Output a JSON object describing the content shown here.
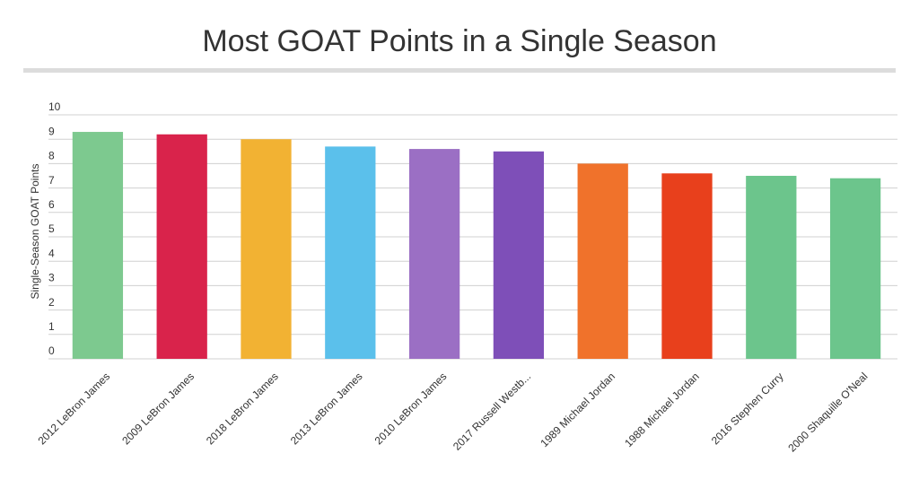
{
  "chart_data": {
    "type": "bar",
    "title": "Most GOAT Points in a Single Season",
    "y_label": "Single-Season GOAT Points",
    "categories": [
      "2012 LeBron James",
      "2009 LeBron James",
      "2018 LeBron James",
      "2013 LeBron James",
      "2010 LeBron James",
      "2017 Russell Westb...",
      "1989 Michael Jordan",
      "1988 Michael Jordan",
      "2016 Stephen Curry",
      "2000 Shaquille O'Neal"
    ],
    "values": [
      9.3,
      9.2,
      9.0,
      8.7,
      8.6,
      8.5,
      8.0,
      7.6,
      7.5,
      7.4
    ],
    "colors": [
      "#7dc98f",
      "#d9234b",
      "#f2b233",
      "#5bc0eb",
      "#9b6fc4",
      "#7e4fb8",
      "#f0722b",
      "#e8401c",
      "#6cc58c",
      "#6cc58c"
    ],
    "ylim": [
      0,
      10
    ],
    "yticks": [
      0,
      1,
      2,
      3,
      4,
      5,
      6,
      7,
      8,
      9,
      10
    ],
    "grid": true
  }
}
